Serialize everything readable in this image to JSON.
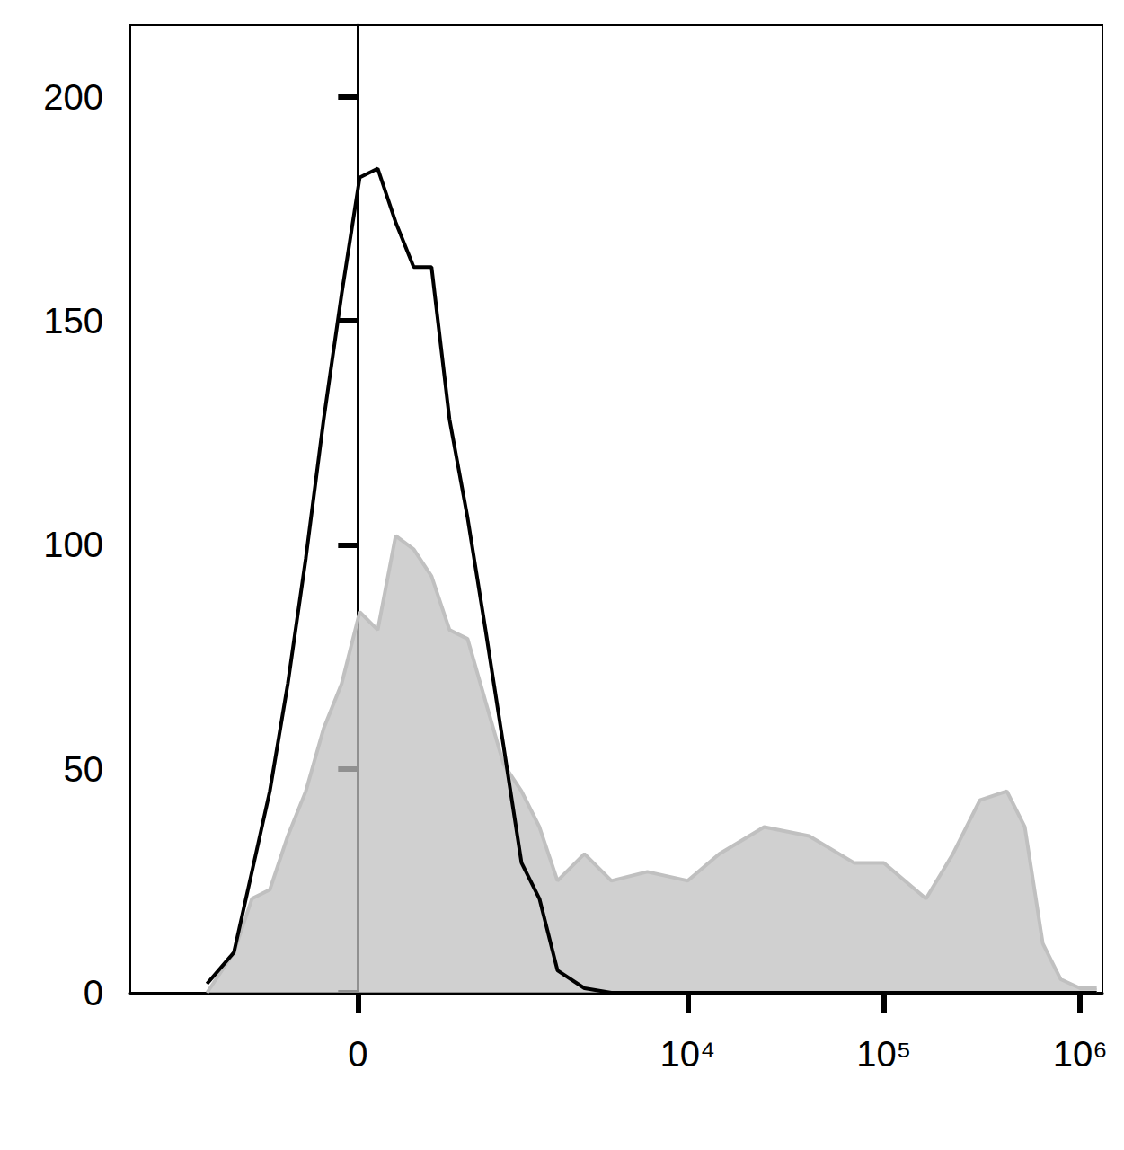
{
  "chart_data": {
    "type": "line",
    "x": [
      -1190,
      -845,
      -663,
      -512,
      -383,
      -271,
      -172,
      -80,
      9,
      98,
      191,
      293,
      407,
      540,
      698,
      886,
      1115,
      1392,
      1731,
      2149,
      2962,
      4075,
      6222,
      10000,
      14480,
      24530,
      41570,
      70470,
      100000,
      163900,
      224800,
      308600,
      423300,
      522600,
      645400,
      796900,
      1000000,
      1216000
    ],
    "series": [
      {
        "type": "area",
        "color": "#c0c0c0",
        "values": [
          0,
          9,
          21,
          23,
          35,
          45,
          59,
          69,
          85,
          81,
          102,
          99,
          93,
          81,
          79,
          65,
          51,
          45,
          37,
          25,
          31,
          25,
          27,
          25,
          31,
          37,
          35,
          29,
          29,
          21,
          31,
          43,
          45,
          37,
          11,
          3,
          1,
          1
        ]
      },
      {
        "type": "line",
        "color": "#000000",
        "values": [
          2,
          9,
          27,
          45,
          69,
          97,
          128,
          156,
          182,
          184,
          172,
          162,
          162,
          128,
          106,
          81,
          55,
          29,
          21,
          5,
          1,
          0,
          0,
          0,
          0,
          0,
          0,
          0,
          0,
          0,
          0,
          0,
          0,
          0,
          0,
          0,
          0,
          0
        ]
      }
    ],
    "xlim": [
      -3000,
      1300000
    ],
    "xticks": [
      0,
      {
        "value": 10000,
        "label": "10⁴"
      },
      {
        "value": 100000,
        "label": "10⁵"
      },
      {
        "value": 1000000,
        "label": "10⁶"
      }
    ],
    "ylim": [
      0,
      216
    ],
    "yticks": [
      0,
      50,
      100,
      150,
      200
    ],
    "grid": false
  }
}
